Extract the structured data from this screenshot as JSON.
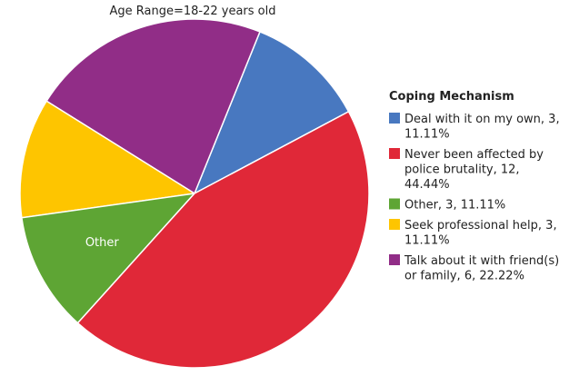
{
  "chart_data": {
    "type": "pie",
    "title": "Age Range=18-22 years old",
    "legend_title": "Coping Mechanism",
    "legend_position": "right",
    "start_angle_deg": 28,
    "slices": [
      {
        "name": "Deal with it on my own",
        "value": 3,
        "percent": 11.11,
        "color": "#4878c0",
        "label": "",
        "legend_lines": [
          "Deal with it on my own, 3,",
          "11.11%"
        ]
      },
      {
        "name": "Talk about it with friend(s) or family",
        "value": 6,
        "percent": 22.22,
        "color": "#912d87",
        "label": "",
        "legend_lines": [
          "Talk about it with friend(s)",
          "or family, 6, 22.22%"
        ]
      },
      {
        "name": "Seek professional help",
        "value": 3,
        "percent": 11.11,
        "color": "#fec500",
        "label": "",
        "legend_lines": [
          "Seek professional help, 3,",
          "11.11%"
        ]
      },
      {
        "name": "Other",
        "value": 3,
        "percent": 11.11,
        "color": "#5ea534",
        "label": "Other",
        "legend_lines": [
          "Other, 3, 11.11%"
        ]
      },
      {
        "name": "Never been affected by police brutality",
        "value": 12,
        "percent": 44.44,
        "color": "#e02838",
        "label": "",
        "legend_lines": [
          "Never been affected by",
          "police brutality, 12,",
          "44.44%"
        ]
      }
    ],
    "legend_order": [
      "Deal with it on my own",
      "Never been affected by police brutality",
      "Other",
      "Seek professional help",
      "Talk about it with friend(s) or family"
    ]
  }
}
